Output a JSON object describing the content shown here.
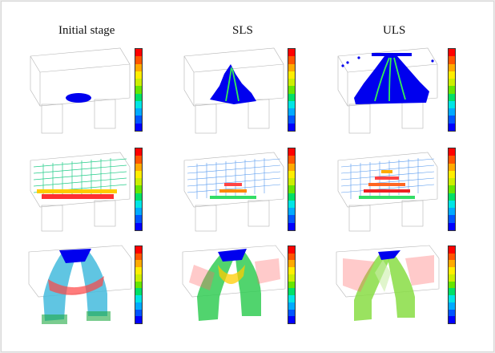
{
  "columns": [
    {
      "title": "Initial stage"
    },
    {
      "title": "SLS"
    },
    {
      "title": "ULS"
    }
  ],
  "colors": {
    "scale": [
      "#0000ff",
      "#0055ff",
      "#00aaff",
      "#00e5e5",
      "#00e066",
      "#66e600",
      "#ccee00",
      "#ffee00",
      "#ffaa00",
      "#ff5500",
      "#ff0000"
    ]
  }
}
